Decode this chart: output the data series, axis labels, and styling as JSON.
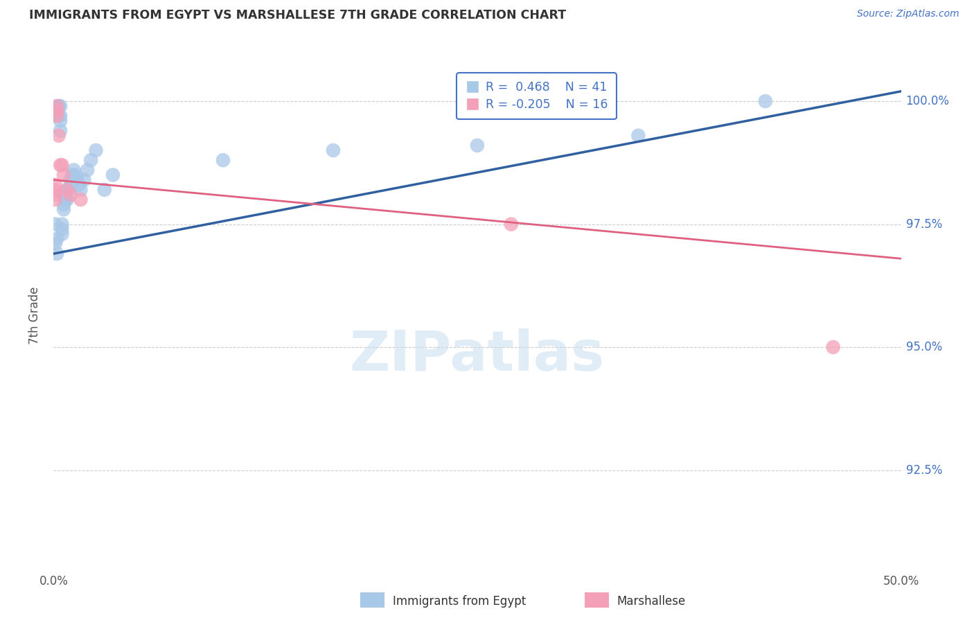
{
  "title": "IMMIGRANTS FROM EGYPT VS MARSHALLESE 7TH GRADE CORRELATION CHART",
  "source": "Source: ZipAtlas.com",
  "ylabel": "7th Grade",
  "ytick_labels": [
    "92.5%",
    "95.0%",
    "97.5%",
    "100.0%"
  ],
  "ytick_values": [
    0.925,
    0.95,
    0.975,
    1.0
  ],
  "xlim": [
    0.0,
    0.5
  ],
  "ylim": [
    0.905,
    1.008
  ],
  "legend_label1": "Immigrants from Egypt",
  "legend_label2": "Marshallese",
  "R1": 0.468,
  "N1": 41,
  "R2": -0.205,
  "N2": 16,
  "color_blue": "#A8C8E8",
  "color_pink": "#F4A0B8",
  "line_color_blue": "#3060A0",
  "line_color_pink": "#E06080",
  "egypt_x": [
    0.001,
    0.001,
    0.002,
    0.002,
    0.003,
    0.003,
    0.003,
    0.004,
    0.004,
    0.004,
    0.004,
    0.005,
    0.005,
    0.005,
    0.006,
    0.006,
    0.006,
    0.007,
    0.007,
    0.008,
    0.008,
    0.009,
    0.01,
    0.01,
    0.011,
    0.012,
    0.013,
    0.014,
    0.015,
    0.016,
    0.018,
    0.02,
    0.022,
    0.025,
    0.03,
    0.035,
    0.1,
    0.165,
    0.25,
    0.345,
    0.42
  ],
  "egypt_y": [
    0.975,
    0.971,
    0.972,
    0.969,
    0.999,
    0.999,
    0.997,
    0.999,
    0.997,
    0.996,
    0.994,
    0.975,
    0.974,
    0.973,
    0.981,
    0.979,
    0.978,
    0.981,
    0.98,
    0.982,
    0.98,
    0.982,
    0.984,
    0.983,
    0.985,
    0.986,
    0.985,
    0.984,
    0.983,
    0.982,
    0.984,
    0.986,
    0.988,
    0.99,
    0.982,
    0.985,
    0.988,
    0.99,
    0.991,
    0.993,
    1.0
  ],
  "marsh_x": [
    0.001,
    0.001,
    0.001,
    0.001,
    0.002,
    0.002,
    0.002,
    0.003,
    0.004,
    0.005,
    0.006,
    0.008,
    0.01,
    0.016,
    0.27,
    0.46
  ],
  "marsh_y": [
    0.983,
    0.982,
    0.981,
    0.98,
    0.999,
    0.998,
    0.997,
    0.993,
    0.987,
    0.987,
    0.985,
    0.982,
    0.981,
    0.98,
    0.975,
    0.95
  ],
  "blue_line_x": [
    0.0,
    0.5
  ],
  "blue_line_y": [
    0.969,
    1.002
  ],
  "pink_line_x": [
    0.0,
    0.5
  ],
  "pink_line_y": [
    0.984,
    0.968
  ]
}
